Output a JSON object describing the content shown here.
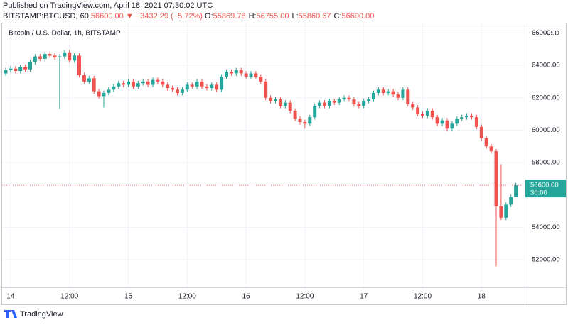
{
  "header": {
    "published": "Published on TradingView.com, April 18, 2021 07:30:02 UTC",
    "symbol": "BITSTAMP:BTCUSD, 60",
    "price": "56600.00",
    "change": "▼ −3432.29 (−5.72%)",
    "ohlc": [
      {
        "key": "O:",
        "value": "55869.78"
      },
      {
        "key": "H:",
        "value": "56755.00"
      },
      {
        "key": "L:",
        "value": "55860.67"
      },
      {
        "key": "C:",
        "value": "56600.00"
      }
    ]
  },
  "footer": {
    "brand": "TradingView"
  },
  "chart_data": {
    "type": "candlestick",
    "title": "Bitcoin / U.S. Dollar, 1h, BITSTAMP",
    "currency": "USD",
    "up_color": "#26a69a",
    "down_color": "#ef5350",
    "grid": true,
    "last_price": {
      "value": 56600,
      "label": "56600.00"
    },
    "countdown": "30:00",
    "ylim": [
      50300,
      66280
    ],
    "yticks": [
      {
        "value": 52000,
        "label": "52000.00"
      },
      {
        "value": 54000,
        "label": "54000.00"
      },
      {
        "value": 58000,
        "label": "58000.00"
      },
      {
        "value": 60000,
        "label": "60000.00"
      },
      {
        "value": 62000,
        "label": "62000.00"
      },
      {
        "value": 64000,
        "label": "64000.00"
      },
      66000
    ],
    "categories": [
      null,
      "14",
      null,
      null,
      null,
      null,
      null,
      null,
      null,
      null,
      null,
      null,
      null,
      "12:00",
      null,
      null,
      null,
      null,
      null,
      null,
      null,
      null,
      null,
      null,
      null,
      "15",
      null,
      null,
      null,
      null,
      null,
      null,
      null,
      null,
      null,
      null,
      null,
      "12:00",
      null,
      null,
      null,
      null,
      null,
      null,
      null,
      null,
      null,
      null,
      null,
      "16",
      null,
      null,
      null,
      null,
      null,
      null,
      null,
      null,
      null,
      null,
      null,
      "12:00",
      null,
      null,
      null,
      null,
      null,
      null,
      null,
      null,
      null,
      null,
      null,
      "17",
      null,
      null,
      null,
      null,
      null,
      null,
      null,
      null,
      null,
      null,
      null,
      "12:00",
      null,
      null,
      null,
      null,
      null,
      null,
      null,
      null,
      null,
      null,
      null,
      "18",
      null,
      null,
      null,
      null,
      null,
      null,
      null
    ],
    "open": [
      63500,
      63700,
      63800,
      63650,
      63900,
      63750,
      64200,
      64550,
      64400,
      64700,
      64600,
      64500,
      64550,
      64800,
      64300,
      64600,
      63400,
      63000,
      63200,
      62400,
      62100,
      62300,
      62500,
      62700,
      62900,
      62800,
      63000,
      62700,
      62900,
      63000,
      62800,
      63100,
      63000,
      62800,
      62600,
      62500,
      62300,
      62500,
      62800,
      62700,
      63000,
      62700,
      62600,
      62800,
      62500,
      63300,
      63600,
      63500,
      63700,
      63500,
      63300,
      63500,
      63300,
      63000,
      62000,
      61800,
      61900,
      61500,
      61700,
      61200,
      60700,
      60500,
      60400,
      60800,
      61500,
      61700,
      61500,
      61800,
      61700,
      61900,
      62000,
      61900,
      61600,
      61500,
      61800,
      61900,
      62300,
      62500,
      62300,
      62400,
      62200,
      62000,
      62500,
      61600,
      61400,
      61000,
      60900,
      61200,
      60800,
      60400,
      60600,
      60100,
      60400,
      60700,
      60800,
      60900,
      60800,
      60200,
      59500,
      59000,
      58700,
      55300,
      54600,
      55400,
      55869.78
    ],
    "high": [
      63850,
      63950,
      63950,
      64050,
      64050,
      64350,
      64700,
      64700,
      64850,
      64850,
      64750,
      64700,
      64950,
      64950,
      64750,
      64750,
      63550,
      63350,
      63350,
      62550,
      62450,
      62650,
      62850,
      63050,
      63050,
      63150,
      63150,
      63050,
      63150,
      63150,
      63250,
      63250,
      63150,
      62950,
      62750,
      62650,
      62650,
      62950,
      62950,
      63150,
      63150,
      62850,
      62950,
      62950,
      63450,
      63750,
      63750,
      63850,
      63850,
      63650,
      63650,
      63650,
      63450,
      63150,
      62150,
      62050,
      62050,
      61850,
      61850,
      61350,
      60850,
      60650,
      60950,
      61650,
      61850,
      61850,
      61950,
      61950,
      62050,
      62150,
      62150,
      62050,
      61750,
      61950,
      62050,
      62450,
      62650,
      62650,
      62550,
      62550,
      62350,
      62650,
      62650,
      61750,
      61550,
      61150,
      61350,
      61350,
      60950,
      60750,
      60750,
      60550,
      60850,
      60950,
      61050,
      61050,
      60950,
      60350,
      59650,
      59150,
      58850,
      57900,
      55550,
      56020,
      56755
    ],
    "low": [
      63350,
      63550,
      63500,
      63500,
      63600,
      63600,
      64050,
      64250,
      64250,
      64450,
      64350,
      61300,
      64400,
      64150,
      64150,
      63250,
      62850,
      62850,
      62250,
      61950,
      61400,
      62150,
      62350,
      62550,
      62650,
      62650,
      62550,
      62550,
      62750,
      62650,
      62650,
      62850,
      62650,
      62450,
      62350,
      62150,
      62150,
      62350,
      62550,
      62550,
      62550,
      62450,
      62450,
      62350,
      62350,
      63150,
      63350,
      63350,
      63350,
      63150,
      63150,
      63150,
      62850,
      61850,
      61650,
      61650,
      61350,
      61350,
      61050,
      60550,
      60350,
      60100,
      60250,
      60650,
      61350,
      61350,
      61350,
      61550,
      61550,
      61750,
      61750,
      61450,
      61350,
      61350,
      61650,
      61750,
      62150,
      62150,
      62150,
      62050,
      61850,
      61850,
      61450,
      61250,
      60850,
      60750,
      60750,
      60650,
      60250,
      60250,
      59950,
      59950,
      60250,
      60550,
      60650,
      60650,
      60050,
      59350,
      58850,
      58550,
      51600,
      54450,
      54450,
      55250,
      55860.67
    ],
    "close": [
      63700,
      63800,
      63650,
      63900,
      63750,
      64200,
      64550,
      64400,
      64700,
      64600,
      64500,
      64550,
      64800,
      64300,
      64600,
      63400,
      63000,
      63200,
      62400,
      62100,
      62300,
      62500,
      62700,
      62900,
      62800,
      63000,
      62700,
      62900,
      63000,
      62800,
      63100,
      63000,
      62800,
      62600,
      62500,
      62300,
      62500,
      62800,
      62700,
      63000,
      62700,
      62600,
      62800,
      62500,
      63300,
      63600,
      63500,
      63700,
      63500,
      63300,
      63500,
      63300,
      63000,
      62000,
      61800,
      61900,
      61500,
      61700,
      61200,
      60700,
      60500,
      60400,
      60800,
      61500,
      61700,
      61500,
      61800,
      61700,
      61900,
      62000,
      61900,
      61600,
      61500,
      61800,
      61900,
      62300,
      62500,
      62300,
      62400,
      62200,
      62000,
      62500,
      61600,
      61400,
      61000,
      60900,
      61200,
      60800,
      60400,
      60600,
      60100,
      60400,
      60700,
      60800,
      60900,
      60800,
      60200,
      59500,
      59000,
      58700,
      55300,
      54600,
      55400,
      55870,
      56600
    ]
  }
}
